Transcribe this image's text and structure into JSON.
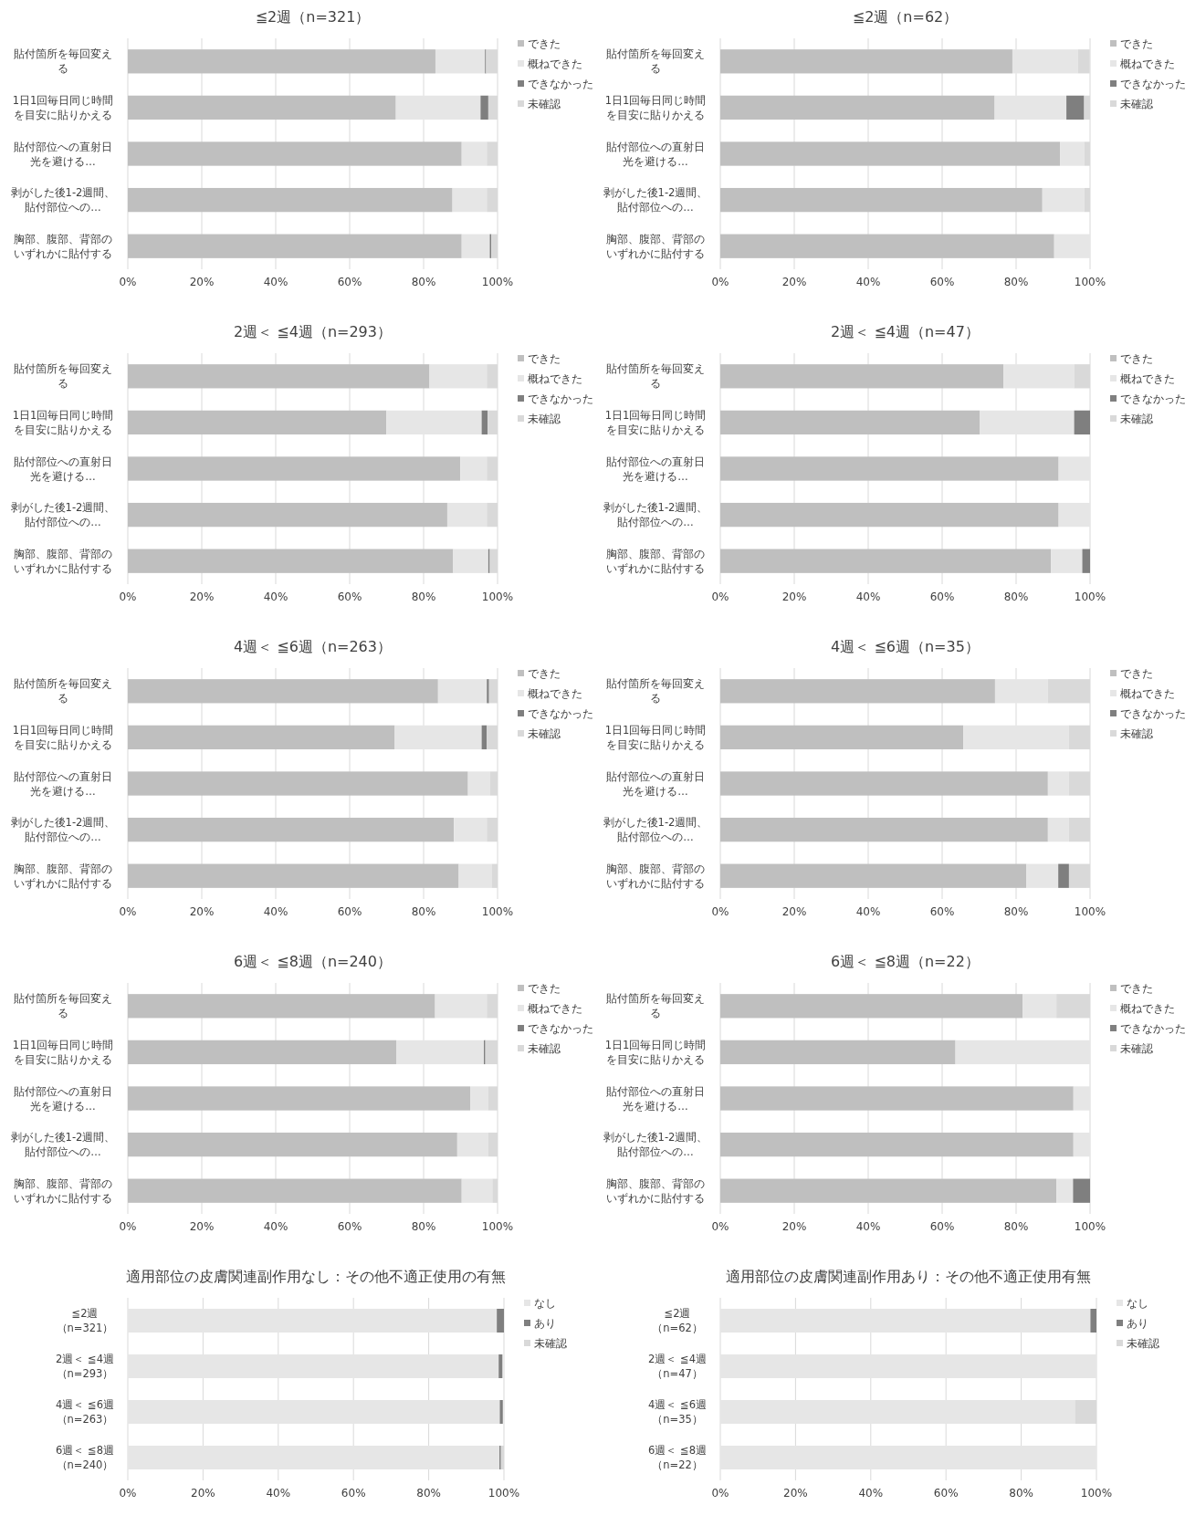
{
  "chart_data": [
    {
      "type": "bar",
      "orientation": "horizontal",
      "stacked": true,
      "title": "≦2週（n=321）",
      "categories": [
        "貼付箇所を毎回変える",
        "1日1回毎日同じ時間を目安に貼りかえる",
        "貼付部位への直射日光を避ける…",
        "剥がした後1-2週間、貼付部位への…",
        "胸部、腹部、背部のいずれかに貼付する"
      ],
      "series": [
        {
          "name": "できた",
          "color": "#bfbfbf",
          "values": [
            83.2,
            72.5,
            90.3,
            87.8,
            90.3
          ]
        },
        {
          "name": "概ねできた",
          "color": "#e6e6e6",
          "values": [
            13.4,
            22.9,
            6.8,
            9.3,
            7.6
          ]
        },
        {
          "name": "できなかった",
          "color": "#7f7f7f",
          "values": [
            0.3,
            2.1,
            0,
            0,
            0.4
          ]
        },
        {
          "name": "未確認",
          "color": "#d9d9d9",
          "values": [
            3.1,
            2.5,
            2.9,
            2.9,
            1.7
          ]
        }
      ],
      "xlim": [
        0,
        100
      ],
      "xticks": [
        {
          "value": 0,
          "label": "0%"
        },
        {
          "value": 20,
          "label": "20%"
        },
        {
          "value": 40,
          "label": "40%"
        },
        {
          "value": 60,
          "label": "60%"
        },
        {
          "value": 80,
          "label": "80%"
        },
        {
          "value": 100,
          "label": "100%"
        }
      ],
      "grid": "x",
      "legend": "right"
    },
    {
      "type": "bar",
      "orientation": "horizontal",
      "stacked": true,
      "title": "≦2週（n=62）",
      "categories": [
        "貼付箇所を毎回変える",
        "1日1回毎日同じ時間を目安に貼りかえる",
        "貼付部位への直射日光を避ける…",
        "剥がした後1-2週間、貼付部位への…",
        "胸部、腹部、背部のいずれかに貼付する"
      ],
      "series": [
        {
          "name": "できた",
          "color": "#bfbfbf",
          "values": [
            79.0,
            74.2,
            91.9,
            87.1,
            90.3
          ]
        },
        {
          "name": "概ねできた",
          "color": "#e6e6e6",
          "values": [
            17.7,
            19.4,
            6.5,
            11.3,
            9.7
          ]
        },
        {
          "name": "できなかった",
          "color": "#7f7f7f",
          "values": [
            0,
            4.8,
            0,
            0,
            0
          ]
        },
        {
          "name": "未確認",
          "color": "#d9d9d9",
          "values": [
            3.2,
            1.6,
            1.6,
            1.6,
            0
          ]
        }
      ],
      "xlim": [
        0,
        100
      ],
      "xticks": [
        {
          "value": 0,
          "label": "0%"
        },
        {
          "value": 20,
          "label": "20%"
        },
        {
          "value": 40,
          "label": "40%"
        },
        {
          "value": 60,
          "label": "60%"
        },
        {
          "value": 80,
          "label": "80%"
        },
        {
          "value": 100,
          "label": "100%"
        }
      ],
      "grid": "x",
      "legend": "right"
    },
    {
      "type": "bar",
      "orientation": "horizontal",
      "stacked": true,
      "title": "2週＜ ≦4週（n=293）",
      "categories": [
        "貼付箇所を毎回変える",
        "1日1回毎日同じ時間を目安に貼りかえる",
        "貼付部位への直射日光を避ける…",
        "剥がした後1-2週間、貼付部位への…",
        "胸部、腹部、背部のいずれかに貼付する"
      ],
      "series": [
        {
          "name": "できた",
          "color": "#bfbfbf",
          "values": [
            81.6,
            69.9,
            89.9,
            86.4,
            88.0
          ]
        },
        {
          "name": "概ねできた",
          "color": "#e6e6e6",
          "values": [
            15.5,
            25.8,
            7.2,
            10.7,
            9.5
          ]
        },
        {
          "name": "できなかった",
          "color": "#7f7f7f",
          "values": [
            0,
            1.6,
            0,
            0,
            0.4
          ]
        },
        {
          "name": "未確認",
          "color": "#d9d9d9",
          "values": [
            2.9,
            2.7,
            2.9,
            2.9,
            2.1
          ]
        }
      ],
      "xlim": [
        0,
        100
      ],
      "xticks": [
        {
          "value": 0,
          "label": "0%"
        },
        {
          "value": 20,
          "label": "20%"
        },
        {
          "value": 40,
          "label": "40%"
        },
        {
          "value": 60,
          "label": "60%"
        },
        {
          "value": 80,
          "label": "80%"
        },
        {
          "value": 100,
          "label": "100%"
        }
      ],
      "grid": "x",
      "legend": "right"
    },
    {
      "type": "bar",
      "orientation": "horizontal",
      "stacked": true,
      "title": "2週＜ ≦4週（n=47）",
      "categories": [
        "貼付箇所を毎回変える",
        "1日1回毎日同じ時間を目安に貼りかえる",
        "貼付部位への直射日光を避ける…",
        "剥がした後1-2週間、貼付部位への…",
        "胸部、腹部、背部のいずれかに貼付する"
      ],
      "series": [
        {
          "name": "できた",
          "color": "#bfbfbf",
          "values": [
            76.6,
            70.2,
            91.5,
            91.5,
            89.4
          ]
        },
        {
          "name": "概ねできた",
          "color": "#e6e6e6",
          "values": [
            19.1,
            25.5,
            8.5,
            8.5,
            8.5
          ]
        },
        {
          "name": "できなかった",
          "color": "#7f7f7f",
          "values": [
            0,
            4.3,
            0,
            0,
            2.1
          ]
        },
        {
          "name": "未確認",
          "color": "#d9d9d9",
          "values": [
            4.3,
            0,
            0,
            0,
            0
          ]
        }
      ],
      "xlim": [
        0,
        100
      ],
      "xticks": [
        {
          "value": 0,
          "label": "0%"
        },
        {
          "value": 20,
          "label": "20%"
        },
        {
          "value": 40,
          "label": "40%"
        },
        {
          "value": 60,
          "label": "60%"
        },
        {
          "value": 80,
          "label": "80%"
        },
        {
          "value": 100,
          "label": "100%"
        }
      ],
      "grid": "x",
      "legend": "right"
    },
    {
      "type": "bar",
      "orientation": "horizontal",
      "stacked": true,
      "title": "4週＜ ≦6週（n=263）",
      "categories": [
        "貼付箇所を毎回変える",
        "1日1回毎日同じ時間を目安に貼りかえる",
        "貼付部位への直射日光を避ける…",
        "剥がした後1-2週間、貼付部位への…",
        "胸部、腹部、背部のいずれかに貼付する"
      ],
      "series": [
        {
          "name": "できた",
          "color": "#bfbfbf",
          "values": [
            83.9,
            72.2,
            92.0,
            88.2,
            89.5
          ]
        },
        {
          "name": "概ねできた",
          "color": "#e6e6e6",
          "values": [
            13.2,
            23.5,
            5.9,
            8.9,
            8.9
          ]
        },
        {
          "name": "できなかった",
          "color": "#7f7f7f",
          "values": [
            0.6,
            1.4,
            0,
            0,
            0
          ]
        },
        {
          "name": "未確認",
          "color": "#d9d9d9",
          "values": [
            2.3,
            2.9,
            2.1,
            2.9,
            1.6
          ]
        }
      ],
      "xlim": [
        0,
        100
      ],
      "xticks": [
        {
          "value": 0,
          "label": "0%"
        },
        {
          "value": 20,
          "label": "20%"
        },
        {
          "value": 40,
          "label": "40%"
        },
        {
          "value": 60,
          "label": "60%"
        },
        {
          "value": 80,
          "label": "80%"
        },
        {
          "value": 100,
          "label": "100%"
        }
      ],
      "grid": "x",
      "legend": "right"
    },
    {
      "type": "bar",
      "orientation": "horizontal",
      "stacked": true,
      "title": "4週＜ ≦6週（n=35）",
      "categories": [
        "貼付箇所を毎回変える",
        "1日1回毎日同じ時間を目安に貼りかえる",
        "貼付部位への直射日光を避ける…",
        "剥がした後1-2週間、貼付部位への…",
        "胸部、腹部、背部のいずれかに貼付する"
      ],
      "series": [
        {
          "name": "できた",
          "color": "#bfbfbf",
          "values": [
            74.3,
            65.7,
            88.6,
            88.6,
            82.8
          ]
        },
        {
          "name": "概ねできた",
          "color": "#e6e6e6",
          "values": [
            14.3,
            28.6,
            5.7,
            5.7,
            8.6
          ]
        },
        {
          "name": "できなかった",
          "color": "#7f7f7f",
          "values": [
            0,
            0,
            0,
            0,
            2.9
          ]
        },
        {
          "name": "未確認",
          "color": "#d9d9d9",
          "values": [
            11.4,
            5.7,
            5.7,
            5.7,
            5.7
          ]
        }
      ],
      "xlim": [
        0,
        100
      ],
      "xticks": [
        {
          "value": 0,
          "label": "0%"
        },
        {
          "value": 20,
          "label": "20%"
        },
        {
          "value": 40,
          "label": "40%"
        },
        {
          "value": 60,
          "label": "60%"
        },
        {
          "value": 80,
          "label": "80%"
        },
        {
          "value": 100,
          "label": "100%"
        }
      ],
      "grid": "x",
      "legend": "right"
    },
    {
      "type": "bar",
      "orientation": "horizontal",
      "stacked": true,
      "title": "6週＜ ≦8週（n=240）",
      "categories": [
        "貼付箇所を毎回変える",
        "1日1回毎日同じ時間を目安に貼りかえる",
        "貼付部位への直射日光を避ける…",
        "剥がした後1-2週間、貼付部位への…",
        "胸部、腹部、背部のいずれかに貼付する"
      ],
      "series": [
        {
          "name": "できた",
          "color": "#bfbfbf",
          "values": [
            83.1,
            72.6,
            92.6,
            89.1,
            90.3
          ]
        },
        {
          "name": "概ねできた",
          "color": "#e6e6e6",
          "values": [
            14.0,
            23.7,
            4.9,
            8.4,
            8.3
          ]
        },
        {
          "name": "できなかった",
          "color": "#7f7f7f",
          "values": [
            0,
            0.4,
            0,
            0,
            0
          ]
        },
        {
          "name": "未確認",
          "color": "#d9d9d9",
          "values": [
            2.9,
            3.3,
            2.5,
            2.5,
            1.4
          ]
        }
      ],
      "xlim": [
        0,
        100
      ],
      "xticks": [
        {
          "value": 0,
          "label": "0%"
        },
        {
          "value": 20,
          "label": "20%"
        },
        {
          "value": 40,
          "label": "40%"
        },
        {
          "value": 60,
          "label": "60%"
        },
        {
          "value": 80,
          "label": "80%"
        },
        {
          "value": 100,
          "label": "100%"
        }
      ],
      "grid": "x",
      "legend": "right"
    },
    {
      "type": "bar",
      "orientation": "horizontal",
      "stacked": true,
      "title": "6週＜ ≦8週（n=22）",
      "categories": [
        "貼付箇所を毎回変える",
        "1日1回毎日同じ時間を目安に貼りかえる",
        "貼付部位への直射日光を避ける…",
        "剥がした後1-2週間、貼付部位への…",
        "胸部、腹部、背部のいずれかに貼付する"
      ],
      "series": [
        {
          "name": "できた",
          "color": "#bfbfbf",
          "values": [
            81.8,
            63.6,
            95.5,
            95.5,
            90.9
          ]
        },
        {
          "name": "概ねできた",
          "color": "#e6e6e6",
          "values": [
            9.1,
            36.4,
            4.5,
            4.5,
            4.5
          ]
        },
        {
          "name": "できなかった",
          "color": "#7f7f7f",
          "values": [
            0,
            0,
            0,
            0,
            4.6
          ]
        },
        {
          "name": "未確認",
          "color": "#d9d9d9",
          "values": [
            9.1,
            0,
            0,
            0,
            0
          ]
        }
      ],
      "xlim": [
        0,
        100
      ],
      "xticks": [
        {
          "value": 0,
          "label": "0%"
        },
        {
          "value": 20,
          "label": "20%"
        },
        {
          "value": 40,
          "label": "40%"
        },
        {
          "value": 60,
          "label": "60%"
        },
        {
          "value": 80,
          "label": "80%"
        },
        {
          "value": 100,
          "label": "100%"
        }
      ],
      "grid": "x",
      "legend": "right"
    },
    {
      "type": "bar",
      "orientation": "horizontal",
      "stacked": true,
      "title": "適用部位の皮膚関連副作用なし：その他不適正使用の有無",
      "categories": [
        "≦2週（n=321）",
        "2週＜ ≦4週（n=293）",
        "4週＜ ≦6週（n=263）",
        "6週＜ ≦8週（n=240）"
      ],
      "series": [
        {
          "name": "なし",
          "color": "#e6e6e6",
          "values": [
            98.1,
            98.6,
            98.9,
            98.8
          ]
        },
        {
          "name": "あり",
          "color": "#7f7f7f",
          "values": [
            1.9,
            1.0,
            0.8,
            0.4
          ]
        },
        {
          "name": "未確認",
          "color": "#d9d9d9",
          "values": [
            0,
            null,
            null,
            0.8
          ]
        }
      ],
      "xlim": [
        0,
        100
      ],
      "xticks": [
        {
          "value": 0,
          "label": "0%"
        },
        {
          "value": 20,
          "label": "20%"
        },
        {
          "value": 40,
          "label": "40%"
        },
        {
          "value": 60,
          "label": "60%"
        },
        {
          "value": 80,
          "label": "80%"
        },
        {
          "value": 100,
          "label": "100%"
        }
      ],
      "grid": "x",
      "legend": "right"
    },
    {
      "type": "bar",
      "orientation": "horizontal",
      "stacked": true,
      "title": "適用部位の皮膚関連副作用あり：その他不適正使用有無",
      "categories": [
        "≦2週（n=62）",
        "2週＜ ≦4週（n=47）",
        "4週＜ ≦6週（n=35）",
        "6週＜ ≦8週（n=22）"
      ],
      "series": [
        {
          "name": "なし",
          "color": "#e6e6e6",
          "values": [
            98.4,
            100,
            94.3,
            100
          ]
        },
        {
          "name": "あり",
          "color": "#7f7f7f",
          "values": [
            1.6,
            0,
            0,
            0
          ]
        },
        {
          "name": "未確認",
          "color": "#d9d9d9",
          "values": [
            0,
            0,
            5.7,
            0
          ]
        }
      ],
      "xlim": [
        0,
        100
      ],
      "xticks": [
        {
          "value": 0,
          "label": "0%"
        },
        {
          "value": 20,
          "label": "20%"
        },
        {
          "value": 40,
          "label": "40%"
        },
        {
          "value": 60,
          "label": "60%"
        },
        {
          "value": 80,
          "label": "80%"
        },
        {
          "value": 100,
          "label": "100%"
        }
      ],
      "grid": "x",
      "legend": "right"
    }
  ]
}
